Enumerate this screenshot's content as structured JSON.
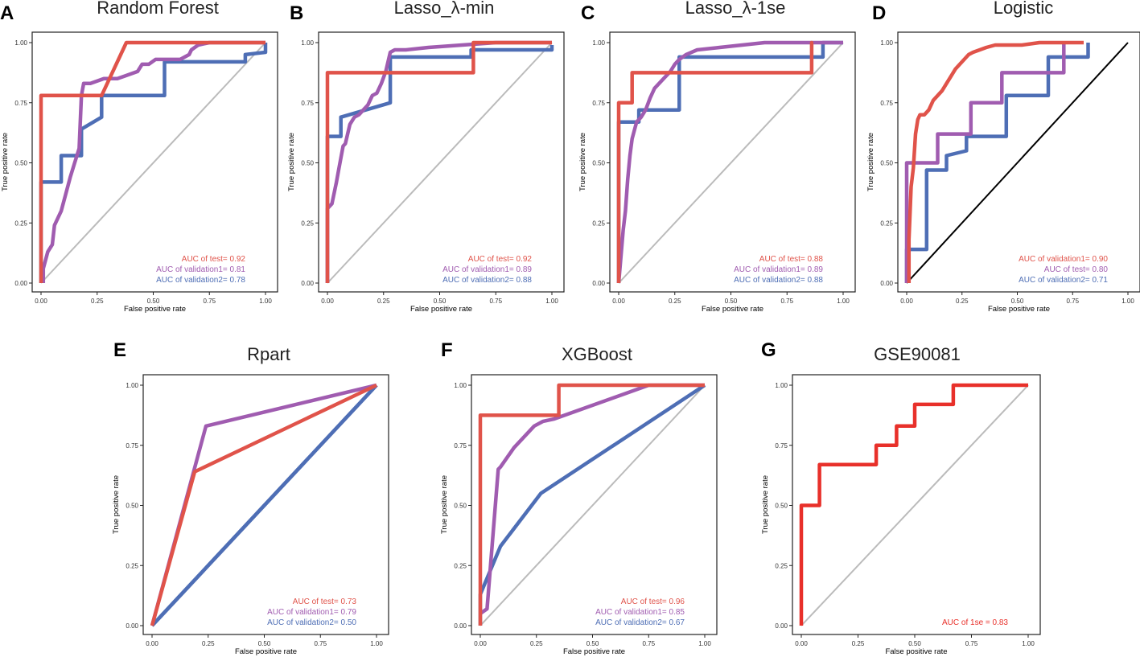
{
  "colors": {
    "test": "#E0534A",
    "validation1": "#A05CB0",
    "validation2": "#4E6EB5",
    "diagonal": "#BBBBBB",
    "black": "#000000",
    "red": "#E8302A"
  },
  "chart_data": [
    {
      "type": "line",
      "panel": "A",
      "title": "Random Forest",
      "xlabel": "False positive rate",
      "ylabel": "True positive rate",
      "xlim": [
        0,
        1
      ],
      "ylim": [
        0,
        1
      ],
      "ticks": [
        "0.00",
        "0.25",
        "0.50",
        "0.75",
        "1.00"
      ],
      "diagonal_color": "#BBBBBB",
      "legend_position": "bottom-right",
      "series": [
        {
          "name": "AUC of test= 0.92",
          "color": "#E0534A",
          "x": [
            0,
            0,
            0.27,
            0.38,
            0.82,
            1.0
          ],
          "y": [
            0,
            0.78,
            0.78,
            1.0,
            1.0,
            1.0
          ]
        },
        {
          "name": "AUC of validation1= 0.81",
          "color": "#A05CB0",
          "x": [
            0.01,
            0.01,
            0.03,
            0.05,
            0.06,
            0.09,
            0.11,
            0.13,
            0.15,
            0.17,
            0.18,
            0.19,
            0.22,
            0.25,
            0.28,
            0.31,
            0.34,
            0.37,
            0.4,
            0.43,
            0.45,
            0.48,
            0.51,
            0.55,
            0.62,
            0.66,
            0.67,
            0.7,
            0.75,
            0.8,
            0.85,
            1.0
          ],
          "y": [
            0,
            0.06,
            0.13,
            0.16,
            0.24,
            0.3,
            0.37,
            0.44,
            0.5,
            0.56,
            0.78,
            0.83,
            0.83,
            0.84,
            0.85,
            0.85,
            0.85,
            0.86,
            0.87,
            0.88,
            0.91,
            0.91,
            0.93,
            0.93,
            0.93,
            0.95,
            0.97,
            0.99,
            1.0,
            1.0,
            1.0,
            1.0
          ]
        },
        {
          "name": "AUC of validation2= 0.78",
          "color": "#4E6EB5",
          "x": [
            0,
            0,
            0.09,
            0.09,
            0.18,
            0.18,
            0.27,
            0.27,
            0.55,
            0.55,
            0.91,
            0.91,
            1.0,
            1.0
          ],
          "y": [
            0,
            0.42,
            0.42,
            0.53,
            0.53,
            0.64,
            0.69,
            0.78,
            0.78,
            0.92,
            0.92,
            0.95,
            0.96,
            1.0
          ]
        }
      ]
    },
    {
      "type": "line",
      "panel": "B",
      "title": "Lasso_λ-min",
      "xlabel": "False positive rate",
      "ylabel": "True positive rate",
      "xlim": [
        0,
        1
      ],
      "ylim": [
        0,
        1
      ],
      "ticks": [
        "0.00",
        "0.25",
        "0.50",
        "0.75",
        "1.00"
      ],
      "diagonal_color": "#BBBBBB",
      "legend_position": "bottom-right",
      "series": [
        {
          "name": "AUC of test= 0.92",
          "color": "#E0534A",
          "x": [
            0,
            0,
            0.65,
            0.65,
            1.0
          ],
          "y": [
            0,
            0.875,
            0.875,
            1.0,
            1.0
          ]
        },
        {
          "name": "AUC of validation1= 0.89",
          "color": "#A05CB0",
          "x": [
            0,
            0,
            0.02,
            0.04,
            0.05,
            0.06,
            0.07,
            0.08,
            0.09,
            0.1,
            0.12,
            0.14,
            0.16,
            0.18,
            0.2,
            0.22,
            0.24,
            0.26,
            0.27,
            0.28,
            0.3,
            0.35,
            0.45,
            0.6,
            0.75,
            0.9,
            1.0
          ],
          "y": [
            0,
            0.31,
            0.33,
            0.42,
            0.47,
            0.52,
            0.57,
            0.58,
            0.62,
            0.66,
            0.69,
            0.7,
            0.72,
            0.74,
            0.78,
            0.79,
            0.83,
            0.88,
            0.92,
            0.96,
            0.97,
            0.97,
            0.98,
            0.99,
            1.0,
            1.0,
            1.0
          ]
        },
        {
          "name": "AUC of validation2= 0.88",
          "color": "#4E6EB5",
          "x": [
            0,
            0,
            0.06,
            0.06,
            0.28,
            0.28,
            0.64,
            0.64,
            1.0,
            1.0
          ],
          "y": [
            0,
            0.61,
            0.61,
            0.69,
            0.75,
            0.94,
            0.94,
            0.97,
            0.97,
            0.99
          ]
        }
      ]
    },
    {
      "type": "line",
      "panel": "C",
      "title": "Lasso_λ-1se",
      "xlabel": "False positive rate",
      "ylabel": "True positive rate",
      "xlim": [
        0,
        1
      ],
      "ylim": [
        0,
        1
      ],
      "ticks": [
        "0.00",
        "0.25",
        "0.50",
        "0.75",
        "1.00"
      ],
      "diagonal_color": "#BBBBBB",
      "legend_position": "bottom-right",
      "series": [
        {
          "name": "AUC of test= 0.88",
          "color": "#E0534A",
          "x": [
            0,
            0,
            0.06,
            0.06,
            0.86,
            0.86,
            0.86
          ],
          "y": [
            0,
            0.75,
            0.75,
            0.875,
            0.875,
            1.0,
            0.875
          ]
        },
        {
          "name": "AUC of validation1= 0.89",
          "color": "#A05CB0",
          "x": [
            0,
            0.02,
            0.03,
            0.04,
            0.05,
            0.06,
            0.08,
            0.1,
            0.12,
            0.14,
            0.16,
            0.18,
            0.2,
            0.23,
            0.25,
            0.27,
            0.3,
            0.35,
            0.45,
            0.55,
            0.65,
            0.75,
            0.85,
            0.95,
            1.0
          ],
          "y": [
            0,
            0.22,
            0.3,
            0.43,
            0.53,
            0.6,
            0.67,
            0.69,
            0.72,
            0.77,
            0.81,
            0.83,
            0.85,
            0.88,
            0.91,
            0.93,
            0.95,
            0.97,
            0.98,
            0.99,
            1.0,
            1.0,
            1.0,
            1.0,
            1.0
          ]
        },
        {
          "name": "AUC of validation2= 0.88",
          "color": "#4E6EB5",
          "x": [
            0,
            0,
            0.09,
            0.09,
            0.27,
            0.27,
            0.91,
            0.91,
            1.0
          ],
          "y": [
            0,
            0.67,
            0.67,
            0.72,
            0.72,
            0.94,
            0.94,
            1.0,
            1.0
          ]
        }
      ]
    },
    {
      "type": "line",
      "panel": "D",
      "title": "Logistic",
      "xlabel": "False positive rate",
      "ylabel": "True positive rate",
      "xlim": [
        0,
        1
      ],
      "ylim": [
        0,
        1
      ],
      "ticks": [
        "0.00",
        "0.25",
        "0.50",
        "0.75",
        "1.00"
      ],
      "diagonal_color": "#000000",
      "legend_position": "bottom-right",
      "series": [
        {
          "name": "AUC of validation1= 0.90",
          "color": "#E0534A",
          "x": [
            0.01,
            0.01,
            0.02,
            0.03,
            0.04,
            0.05,
            0.06,
            0.08,
            0.1,
            0.12,
            0.14,
            0.16,
            0.18,
            0.2,
            0.22,
            0.24,
            0.26,
            0.28,
            0.3,
            0.33,
            0.36,
            0.4,
            0.45,
            0.52,
            0.6,
            0.68,
            0.75,
            0.8
          ],
          "y": [
            0,
            0.18,
            0.4,
            0.48,
            0.62,
            0.68,
            0.7,
            0.7,
            0.72,
            0.76,
            0.78,
            0.8,
            0.83,
            0.86,
            0.89,
            0.91,
            0.93,
            0.95,
            0.96,
            0.97,
            0.98,
            0.99,
            0.99,
            0.99,
            1.0,
            1.0,
            1.0,
            1.0
          ]
        },
        {
          "name": "AUC of  test= 0.80",
          "color": "#A05CB0",
          "x": [
            0,
            0,
            0.14,
            0.14,
            0.29,
            0.29,
            0.43,
            0.43,
            0.71,
            0.71
          ],
          "y": [
            0,
            0.5,
            0.5,
            0.62,
            0.62,
            0.75,
            0.75,
            0.875,
            0.875,
            1.0
          ]
        },
        {
          "name": "AUC of validation2= 0.71",
          "color": "#4E6EB5",
          "x": [
            0,
            0,
            0.09,
            0.09,
            0.18,
            0.18,
            0.27,
            0.27,
            0.45,
            0.45,
            0.64,
            0.64,
            0.82,
            0.82
          ],
          "y": [
            0,
            0.14,
            0.14,
            0.47,
            0.47,
            0.53,
            0.55,
            0.61,
            0.61,
            0.78,
            0.78,
            0.94,
            0.94,
            1.0
          ]
        }
      ]
    },
    {
      "type": "line",
      "panel": "E",
      "title": "Rpart",
      "xlabel": "False positive rate",
      "ylabel": "True positive rate",
      "xlim": [
        0,
        1
      ],
      "ylim": [
        0,
        1
      ],
      "ticks": [
        "0.00",
        "0.25",
        "0.50",
        "0.75",
        "1.00"
      ],
      "diagonal_color": "#4E6EB5",
      "diagonal_width": 4.5,
      "legend_position": "bottom-right",
      "series": [
        {
          "name": "AUC of test= 0.73",
          "color": "#E0534A",
          "x": [
            0,
            0.19,
            1.0
          ],
          "y": [
            0,
            0.64,
            1.0
          ]
        },
        {
          "name": "AUC of validation1= 0.79",
          "color": "#A05CB0",
          "x": [
            0,
            0.24,
            1.0
          ],
          "y": [
            0,
            0.83,
            1.0
          ]
        },
        {
          "name": "AUC of validation2= 0.50",
          "color": "#4E6EB5",
          "x": [
            0,
            1.0
          ],
          "y": [
            0,
            1.0
          ]
        }
      ]
    },
    {
      "type": "line",
      "panel": "F",
      "title": "XGBoost",
      "xlabel": "False positive rate",
      "ylabel": "True positive rate",
      "xlim": [
        0,
        1
      ],
      "ylim": [
        0,
        1
      ],
      "ticks": [
        "0.00",
        "0.25",
        "0.50",
        "0.75",
        "1.00"
      ],
      "diagonal_color": "#BBBBBB",
      "legend_position": "bottom-right",
      "series": [
        {
          "name": "AUC of test= 0.96",
          "color": "#E0534A",
          "x": [
            0,
            0,
            0.35,
            0.35,
            1.0
          ],
          "y": [
            0,
            0.875,
            0.875,
            1.0,
            1.0
          ]
        },
        {
          "name": "AUC of validation1= 0.85",
          "color": "#A05CB0",
          "x": [
            0,
            0.03,
            0.08,
            0.09,
            0.15,
            0.24,
            0.28,
            0.33,
            0.75,
            1.0
          ],
          "y": [
            0.05,
            0.07,
            0.65,
            0.66,
            0.74,
            0.83,
            0.85,
            0.86,
            1.0,
            1.0
          ]
        },
        {
          "name": "AUC of validation2= 0.67",
          "color": "#4E6EB5",
          "x": [
            0,
            0,
            0.09,
            0.27,
            1.0
          ],
          "y": [
            0,
            0.13,
            0.33,
            0.55,
            1.0
          ]
        }
      ]
    },
    {
      "type": "line",
      "panel": "G",
      "title": "GSE90081",
      "xlabel": "False positive rate",
      "ylabel": "True positive rate",
      "xlim": [
        0,
        1
      ],
      "ylim": [
        0,
        1
      ],
      "ticks": [
        "0.00",
        "0.25",
        "0.50",
        "0.75",
        "1.00"
      ],
      "diagonal_color": "#BBBBBB",
      "legend_position": "bottom-right",
      "series": [
        {
          "name": "AUC of 1se =  0.83",
          "color": "#E8302A",
          "x": [
            0,
            0,
            0.08,
            0.08,
            0.33,
            0.33,
            0.42,
            0.42,
            0.5,
            0.5,
            0.67,
            0.67,
            1.0
          ],
          "y": [
            0,
            0.5,
            0.5,
            0.67,
            0.67,
            0.75,
            0.75,
            0.83,
            0.83,
            0.92,
            0.92,
            1.0,
            1.0
          ]
        }
      ]
    }
  ]
}
